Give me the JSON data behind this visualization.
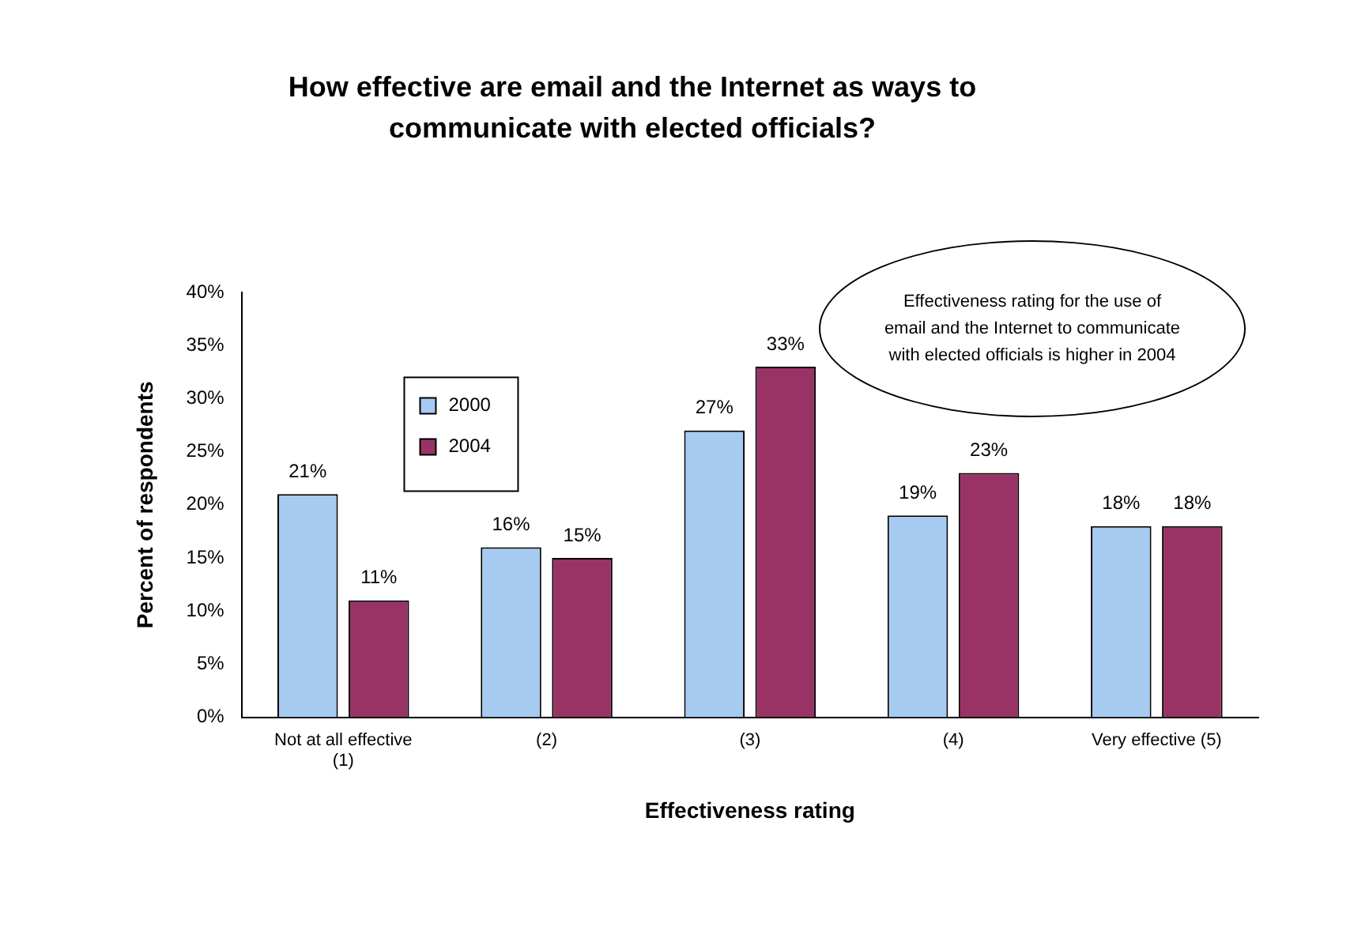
{
  "chart_data": {
    "type": "bar",
    "title": "How effective are email and the Internet as ways to communicate with elected officials?",
    "xlabel": "Effectiveness rating",
    "ylabel": "Percent of respondents",
    "categories": [
      "Not at all effective\n(1)",
      "(2)",
      "(3)",
      "(4)",
      "Very effective (5)"
    ],
    "series": [
      {
        "name": "2000",
        "color": "#a6caf0",
        "values": [
          21,
          16,
          27,
          19,
          18
        ],
        "value_labels": [
          "21%",
          "16%",
          "27%",
          "19%",
          "18%"
        ]
      },
      {
        "name": "2004",
        "color": "#993366",
        "values": [
          11,
          15,
          33,
          23,
          18
        ],
        "value_labels": [
          "11%",
          "15%",
          "33%",
          "23%",
          "18%"
        ]
      }
    ],
    "ylim": [
      0,
      40
    ],
    "yticks": [
      {
        "value": 0,
        "label": "0%"
      },
      {
        "value": 5,
        "label": "5%"
      },
      {
        "value": 10,
        "label": "10%"
      },
      {
        "value": 15,
        "label": "15%"
      },
      {
        "value": 20,
        "label": "20%"
      },
      {
        "value": 25,
        "label": "25%"
      },
      {
        "value": 30,
        "label": "30%"
      },
      {
        "value": 35,
        "label": "35%"
      },
      {
        "value": 40,
        "label": "40%"
      }
    ],
    "grid": false,
    "legend": "top left",
    "annotations": [
      "Effectiveness rating for the use of email and the Internet to communicate with elected officials is higher in 2004"
    ]
  }
}
